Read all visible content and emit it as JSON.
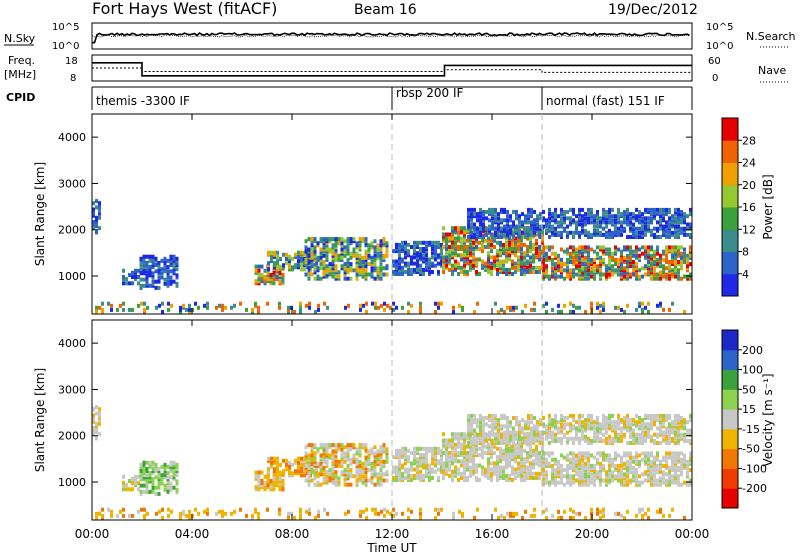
{
  "header": {
    "station": "Fort Hays West (fitACF)",
    "beam": "Beam 16",
    "date": "19/Dec/2012"
  },
  "noise_panel": {
    "left_label": "N.Sky",
    "right_label": "N.Search",
    "left_ticks": [
      "10^5",
      "10^0"
    ],
    "right_ticks": [
      "10^5",
      "10^0"
    ]
  },
  "freq_panel": {
    "left_label_line1": "Freq.",
    "left_label_line2": "[MHz]",
    "right_label": "Nave",
    "left_ticks": [
      "18",
      "8"
    ],
    "right_ticks": [
      "60",
      "0"
    ]
  },
  "cpid_panel": {
    "label": "CPID",
    "modes": [
      {
        "name": "themis -3300 IF",
        "start_hour": 0
      },
      {
        "name": "rbsp 200 IF",
        "start_hour": 12
      },
      {
        "name": "normal (fast) 151 IF",
        "start_hour": 18
      }
    ]
  },
  "power_panel": {
    "ylabel": "Slant Range [km]",
    "yticks": [
      "1000",
      "2000",
      "3000",
      "4000"
    ],
    "colorbar_label": "Power [dB]",
    "colorbar_ticks": [
      "4",
      "8",
      "12",
      "16",
      "20",
      "24",
      "28"
    ],
    "colors": [
      "#1e28e6",
      "#2d64c8",
      "#3c8c8c",
      "#3ca03c",
      "#96c832",
      "#f0a000",
      "#f06400",
      "#e60000"
    ]
  },
  "velocity_panel": {
    "ylabel": "Slant Range [km]",
    "yticks": [
      "1000",
      "2000",
      "3000",
      "4000"
    ],
    "colorbar_label": "Velocity [m s⁻¹]",
    "colorbar_ticks": [
      "200",
      "100",
      "50",
      "15",
      "-15",
      "-50",
      "-100",
      "-200"
    ],
    "colors": [
      "#1e28c8",
      "#2d64c8",
      "#3ca03c",
      "#8cd250",
      "#c8c8c8",
      "#f0b400",
      "#f07800",
      "#f03c00",
      "#e60000"
    ]
  },
  "xaxis": {
    "ticks": [
      "00:00",
      "04:00",
      "08:00",
      "12:00",
      "16:00",
      "20:00",
      "00:00"
    ],
    "label": "Time UT"
  },
  "chart_data": {
    "type": "heatmap",
    "x_range_hours": [
      0,
      24
    ],
    "y_range_km": [
      180,
      4500
    ],
    "freq_mhz_segments": [
      {
        "start": 0.0,
        "end": 2.0,
        "value": 15
      },
      {
        "start": 2.0,
        "end": 14.1,
        "value": 10
      },
      {
        "start": 14.1,
        "end": 24.0,
        "value": 14
      }
    ],
    "nave_segments": [
      {
        "start": 0.0,
        "end": 2.0,
        "value": 30
      },
      {
        "start": 2.0,
        "end": 14.1,
        "value": 22
      },
      {
        "start": 14.1,
        "end": 18.0,
        "value": 26
      },
      {
        "start": 18.0,
        "end": 24.0,
        "value": 20
      }
    ],
    "scatter_regions": [
      {
        "t0": 0.0,
        "t1": 0.25,
        "r0": 1900,
        "r1": 2600,
        "power": "weak",
        "vel": "neutral"
      },
      {
        "t0": 1.2,
        "t1": 1.9,
        "r0": 800,
        "r1": 1100,
        "power": "weak",
        "vel": "neutral"
      },
      {
        "t0": 1.9,
        "t1": 3.4,
        "r0": 700,
        "r1": 1400,
        "power": "weak",
        "vel": "green"
      },
      {
        "t0": 6.5,
        "t1": 7.6,
        "r0": 800,
        "r1": 1200,
        "power": "strong",
        "vel": "orange"
      },
      {
        "t0": 7.0,
        "t1": 9.0,
        "r0": 1100,
        "r1": 1500,
        "power": "mid",
        "vel": "orange"
      },
      {
        "t0": 8.5,
        "t1": 11.8,
        "r0": 900,
        "r1": 1800,
        "power": "mid",
        "vel": "mixed"
      },
      {
        "t0": 12.0,
        "t1": 14.0,
        "r0": 1000,
        "r1": 1700,
        "power": "weak",
        "vel": "neutral"
      },
      {
        "t0": 14.0,
        "t1": 18.0,
        "r0": 1000,
        "r1": 2000,
        "power": "strong",
        "vel": "neutral"
      },
      {
        "t0": 18.0,
        "t1": 24.0,
        "r0": 900,
        "r1": 1600,
        "power": "strong",
        "vel": "neutral"
      },
      {
        "t0": 15.0,
        "t1": 24.0,
        "r0": 1800,
        "r1": 2400,
        "power": "weak",
        "vel": "neutral"
      },
      {
        "t0": 0.0,
        "t1": 24.0,
        "r0": 180,
        "r1": 400,
        "power": "ground",
        "vel": "orange"
      }
    ]
  }
}
